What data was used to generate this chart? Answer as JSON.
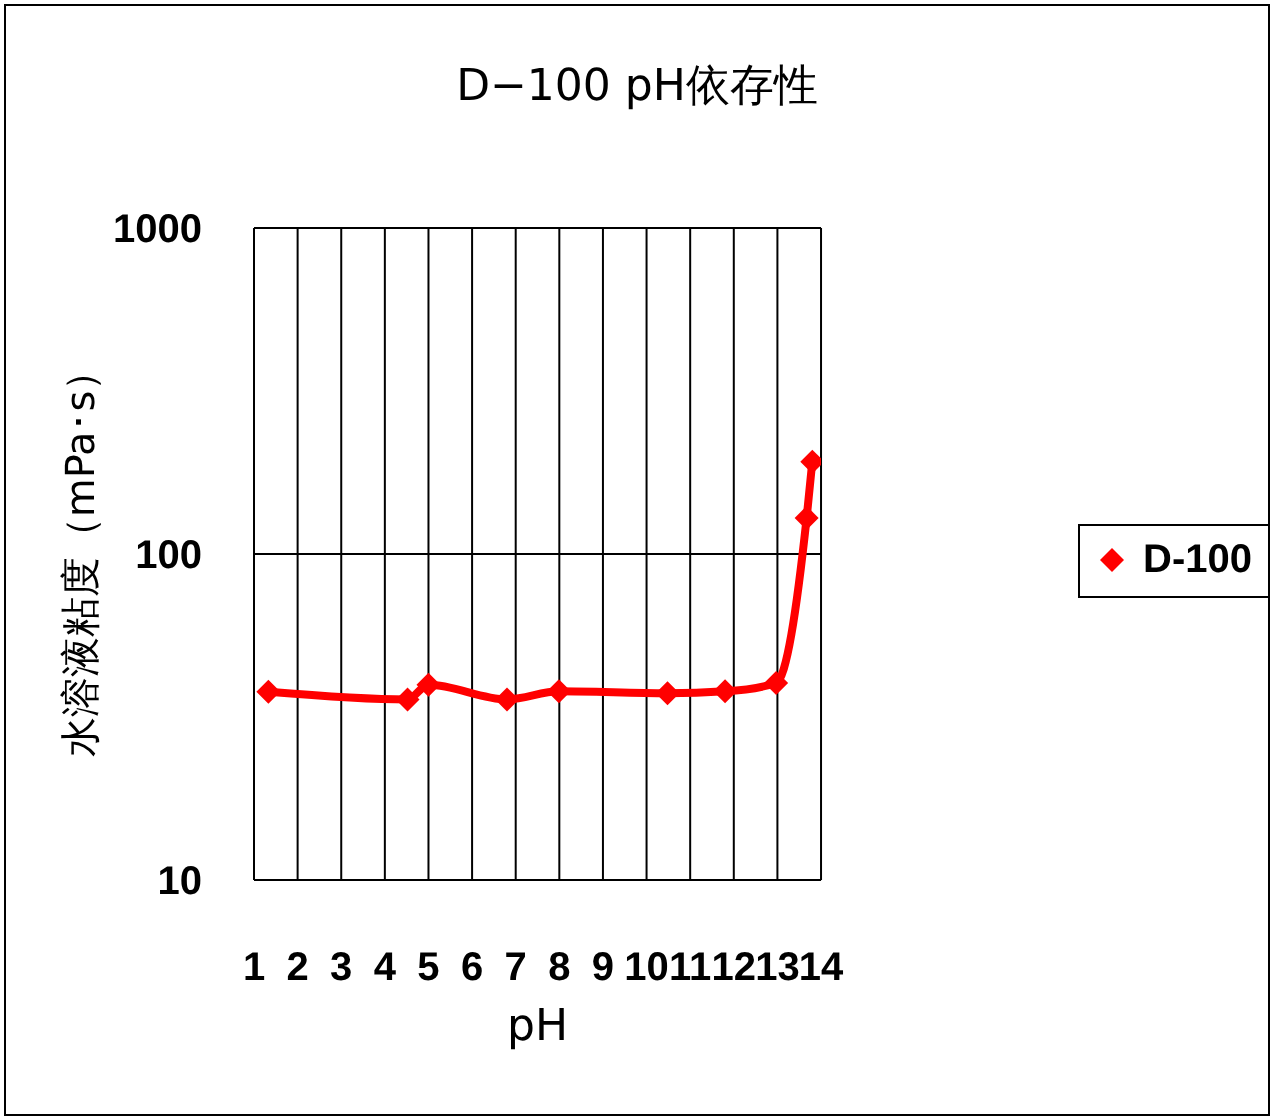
{
  "chart_data": {
    "type": "line",
    "title": "D−100 pH依存性",
    "xlabel": "pH",
    "ylabel": "水溶液粘度（mPa･s）",
    "x": [
      1.33,
      4.52,
      5.0,
      6.8,
      7.99,
      10.48,
      11.8,
      12.97,
      13.67,
      13.8
    ],
    "series": [
      {
        "name": "D-100",
        "color": "#ff0000",
        "values": [
          37.8,
          35.8,
          39.7,
          35.8,
          37.9,
          37.4,
          37.9,
          40.2,
          129,
          192
        ]
      }
    ],
    "xlim": [
      1,
      14
    ],
    "xticks": [
      1,
      2,
      3,
      4,
      5,
      6,
      7,
      8,
      9,
      10,
      11,
      12,
      13,
      14
    ],
    "ylim": [
      10,
      1000
    ],
    "yticks": [
      10,
      100,
      1000
    ],
    "log": true,
    "grid": true,
    "legend": "right",
    "marker": "diamond",
    "line_style": "solid"
  }
}
